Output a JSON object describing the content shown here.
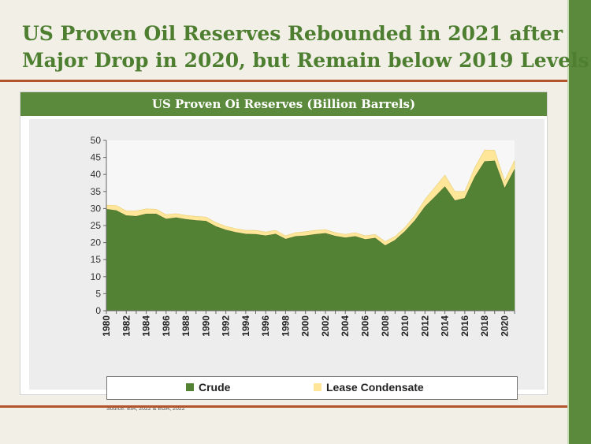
{
  "slide": {
    "title_line1": "US Proven Oil Reserves Rebounded in 2021 after",
    "title_line2": "Major Drop in 2020, but Remain below 2019 Levels",
    "source": "Source: EIA, 2022 & EGA, 2022"
  },
  "colors": {
    "accent_green": "#5b8a3c",
    "crude": "#548235",
    "lease_condensate": "#ffe699",
    "rule": "#b4542c"
  },
  "chart_data": {
    "type": "area",
    "title": "US Proven Oi Reserves (Billion Barrels)",
    "stacked": true,
    "x": [
      1980,
      1981,
      1982,
      1983,
      1984,
      1985,
      1986,
      1987,
      1988,
      1989,
      1990,
      1991,
      1992,
      1993,
      1994,
      1995,
      1996,
      1997,
      1998,
      1999,
      2000,
      2001,
      2002,
      2003,
      2004,
      2005,
      2006,
      2007,
      2008,
      2009,
      2010,
      2011,
      2012,
      2013,
      2014,
      2015,
      2016,
      2017,
      2018,
      2019,
      2020,
      2021
    ],
    "x_tick_labels": [
      "1980",
      "1982",
      "1984",
      "1986",
      "1988",
      "1990",
      "1992",
      "1994",
      "1996",
      "1998",
      "2000",
      "2002",
      "2004",
      "2006",
      "2008",
      "2010",
      "2012",
      "2014",
      "2016",
      "2018",
      "2020"
    ],
    "ylim": [
      0,
      50
    ],
    "y_ticks": [
      0,
      5,
      10,
      15,
      20,
      25,
      30,
      35,
      40,
      45,
      50
    ],
    "grid": false,
    "legend_position": "bottom",
    "series": [
      {
        "name": "Crude",
        "values": [
          29.8,
          29.4,
          27.9,
          27.7,
          28.4,
          28.4,
          26.9,
          27.3,
          26.8,
          26.5,
          26.3,
          24.7,
          23.7,
          23.0,
          22.5,
          22.4,
          22.0,
          22.5,
          21.0,
          21.8,
          22.0,
          22.4,
          22.7,
          21.9,
          21.4,
          21.8,
          20.9,
          21.3,
          19.1,
          20.7,
          23.3,
          26.5,
          30.5,
          33.4,
          36.4,
          32.3,
          33.0,
          39.2,
          43.8,
          44.0,
          35.9,
          41.5
        ]
      },
      {
        "name": "Lease Condensate",
        "values": [
          1.2,
          1.5,
          1.4,
          1.6,
          1.5,
          1.4,
          1.3,
          1.2,
          1.2,
          1.2,
          1.2,
          1.2,
          1.1,
          1.1,
          1.1,
          1.2,
          1.1,
          1.1,
          1.0,
          1.1,
          1.2,
          1.2,
          1.1,
          1.0,
          1.0,
          1.1,
          1.1,
          1.1,
          1.2,
          1.1,
          1.2,
          1.5,
          2.2,
          2.8,
          3.4,
          2.7,
          2.0,
          2.8,
          3.4,
          3.1,
          2.2,
          2.6
        ]
      }
    ]
  }
}
